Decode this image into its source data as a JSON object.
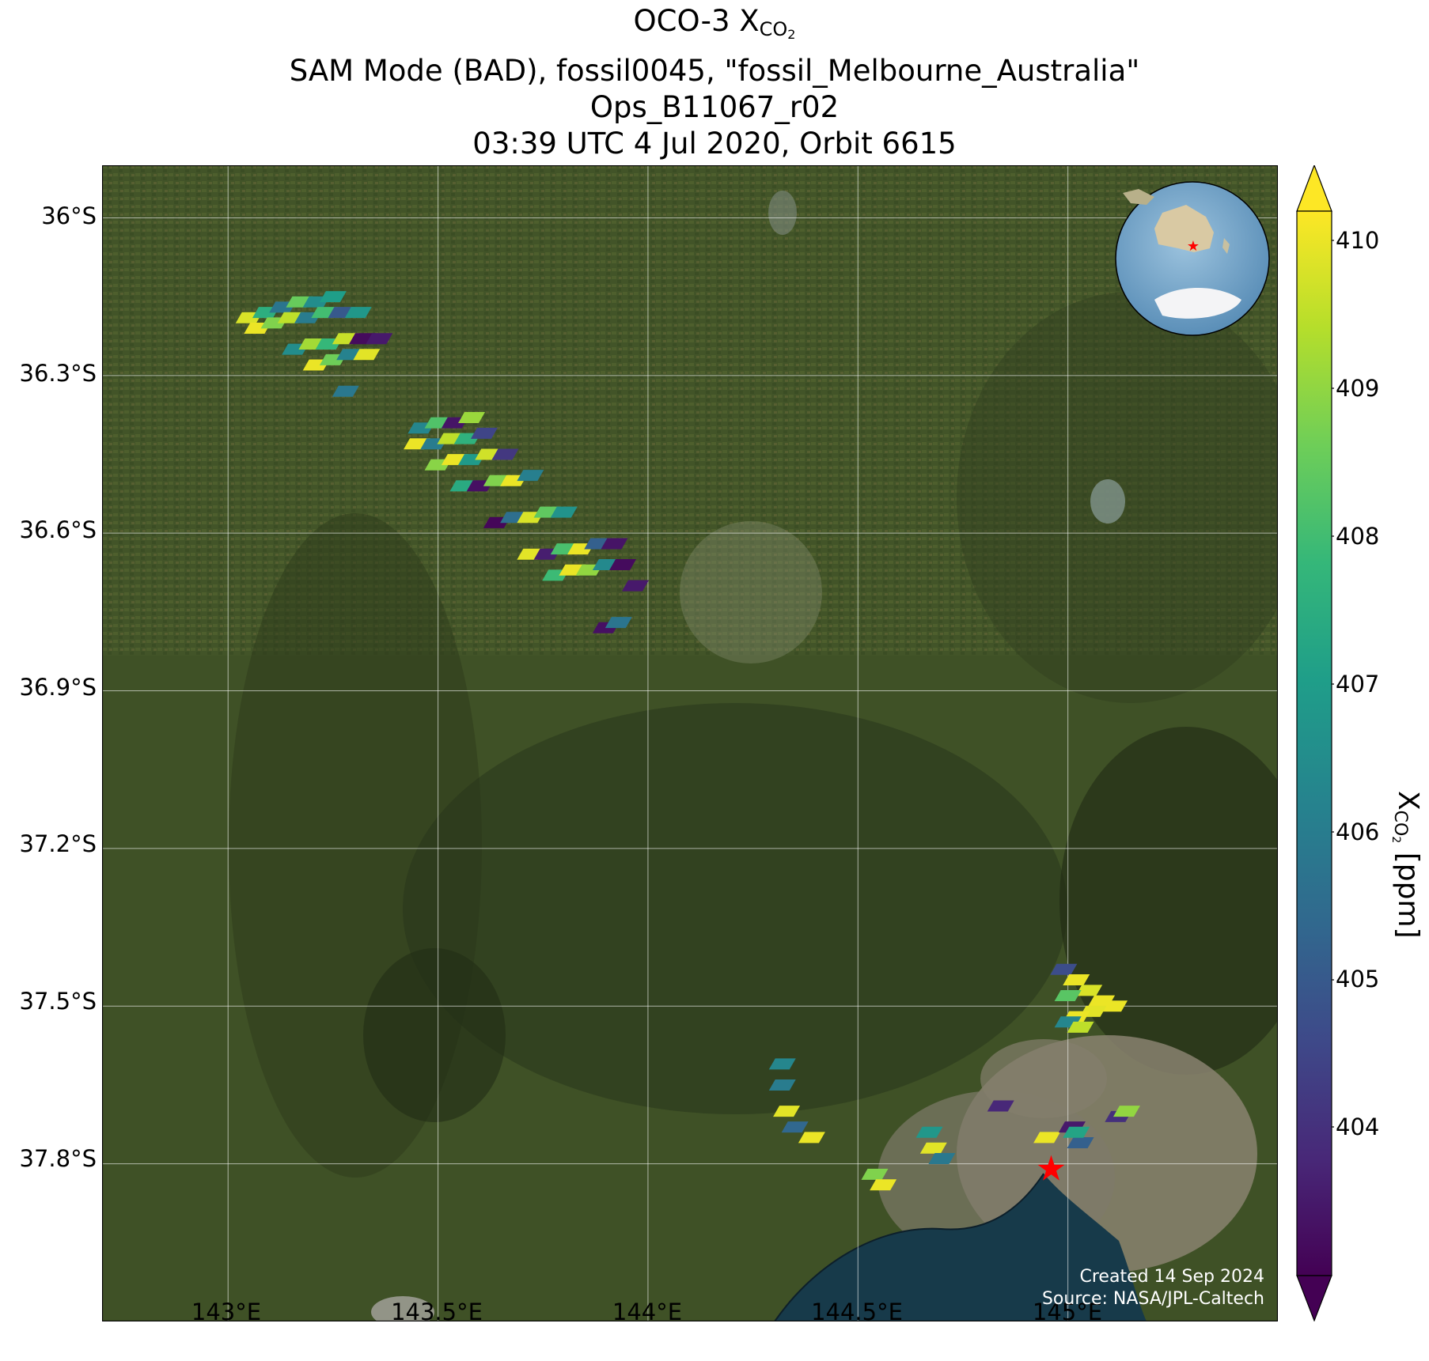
{
  "title": {
    "line1_prefix": "OCO-3 X",
    "line1_sub": "CO",
    "line1_subsub": "2",
    "line2": "SAM Mode (BAD), fossil0045, \"fossil_Melbourne_Australia\"",
    "line3": "Ops_B11067_r02",
    "line4": "03:39 UTC 4 Jul 2020, Orbit 6615"
  },
  "axes": {
    "lat_ticks": [
      "36°S",
      "36.3°S",
      "36.6°S",
      "36.9°S",
      "37.2°S",
      "37.5°S",
      "37.8°S"
    ],
    "lon_ticks": [
      "143°E",
      "143.5°E",
      "144°E",
      "144.5°E",
      "145°E"
    ],
    "lat_range": [
      -38.1,
      -35.9
    ],
    "lon_range": [
      142.7,
      145.5
    ]
  },
  "colorbar": {
    "label_prefix": "X",
    "label_sub": "CO",
    "label_subsub": "2",
    "label_suffix": " [ppm]",
    "ticks": [
      "404",
      "405",
      "406",
      "407",
      "408",
      "409",
      "410"
    ],
    "range": [
      403,
      410.2
    ],
    "colormap": "viridis",
    "extend": "both"
  },
  "credits": {
    "created": "Created 14 Sep 2024",
    "source": "Source: NASA/JPL-Caltech"
  },
  "target": {
    "marker": "red-star",
    "color": "#ff0000",
    "lat": -37.81,
    "lon": 144.96
  },
  "colors": {
    "land_base": "#3f5126",
    "water": "#173a4a",
    "urban": "#8a8270",
    "gridline": "#ffffff"
  },
  "chart_data": {
    "type": "scatter",
    "title": "OCO-3 XCO2",
    "xlabel": "",
    "ylabel": "",
    "xlim": [
      142.7,
      145.5
    ],
    "ylim": [
      -38.1,
      -35.9
    ],
    "value_label": "XCO2 [ppm]",
    "value_range": [
      403,
      410.2
    ],
    "series": [
      {
        "name": "",
        "points": [
          {
            "lon": 143.05,
            "lat": -36.19,
            "v": 409.8
          },
          {
            "lon": 143.09,
            "lat": -36.18,
            "v": 407.5
          },
          {
            "lon": 143.13,
            "lat": -36.17,
            "v": 405.8
          },
          {
            "lon": 143.17,
            "lat": -36.16,
            "v": 408.5
          },
          {
            "lon": 143.21,
            "lat": -36.16,
            "v": 406.5
          },
          {
            "lon": 143.25,
            "lat": -36.15,
            "v": 407.0
          },
          {
            "lon": 143.07,
            "lat": -36.21,
            "v": 410.0
          },
          {
            "lon": 143.11,
            "lat": -36.2,
            "v": 408.8
          },
          {
            "lon": 143.15,
            "lat": -36.19,
            "v": 409.5
          },
          {
            "lon": 143.19,
            "lat": -36.19,
            "v": 406.0
          },
          {
            "lon": 143.23,
            "lat": -36.18,
            "v": 408.0
          },
          {
            "lon": 143.27,
            "lat": -36.18,
            "v": 405.0
          },
          {
            "lon": 143.31,
            "lat": -36.18,
            "v": 406.8
          },
          {
            "lon": 143.16,
            "lat": -36.25,
            "v": 406.5
          },
          {
            "lon": 143.2,
            "lat": -36.24,
            "v": 409.2
          },
          {
            "lon": 143.24,
            "lat": -36.24,
            "v": 407.8
          },
          {
            "lon": 143.28,
            "lat": -36.23,
            "v": 409.6
          },
          {
            "lon": 143.32,
            "lat": -36.23,
            "v": 403.2
          },
          {
            "lon": 143.36,
            "lat": -36.23,
            "v": 403.5
          },
          {
            "lon": 143.21,
            "lat": -36.28,
            "v": 410.0
          },
          {
            "lon": 143.25,
            "lat": -36.27,
            "v": 408.6
          },
          {
            "lon": 143.29,
            "lat": -36.26,
            "v": 406.2
          },
          {
            "lon": 143.33,
            "lat": -36.26,
            "v": 409.9
          },
          {
            "lon": 143.28,
            "lat": -36.33,
            "v": 405.9
          },
          {
            "lon": 143.46,
            "lat": -36.4,
            "v": 406.3
          },
          {
            "lon": 143.5,
            "lat": -36.39,
            "v": 408.2
          },
          {
            "lon": 143.54,
            "lat": -36.39,
            "v": 403.4
          },
          {
            "lon": 143.58,
            "lat": -36.38,
            "v": 409.1
          },
          {
            "lon": 143.45,
            "lat": -36.43,
            "v": 410.0
          },
          {
            "lon": 143.49,
            "lat": -36.43,
            "v": 406.0
          },
          {
            "lon": 143.53,
            "lat": -36.42,
            "v": 409.5
          },
          {
            "lon": 143.57,
            "lat": -36.42,
            "v": 407.6
          },
          {
            "lon": 143.61,
            "lat": -36.41,
            "v": 404.5
          },
          {
            "lon": 143.5,
            "lat": -36.47,
            "v": 408.9
          },
          {
            "lon": 143.54,
            "lat": -36.46,
            "v": 410.0
          },
          {
            "lon": 143.58,
            "lat": -36.46,
            "v": 406.9
          },
          {
            "lon": 143.62,
            "lat": -36.45,
            "v": 409.7
          },
          {
            "lon": 143.66,
            "lat": -36.45,
            "v": 404.2
          },
          {
            "lon": 143.56,
            "lat": -36.51,
            "v": 407.4
          },
          {
            "lon": 143.6,
            "lat": -36.51,
            "v": 403.3
          },
          {
            "lon": 143.64,
            "lat": -36.5,
            "v": 408.8
          },
          {
            "lon": 143.68,
            "lat": -36.5,
            "v": 410.0
          },
          {
            "lon": 143.72,
            "lat": -36.49,
            "v": 406.1
          },
          {
            "lon": 143.64,
            "lat": -36.58,
            "v": 403.1
          },
          {
            "lon": 143.68,
            "lat": -36.57,
            "v": 405.6
          },
          {
            "lon": 143.72,
            "lat": -36.57,
            "v": 409.8
          },
          {
            "lon": 143.76,
            "lat": -36.56,
            "v": 408.4
          },
          {
            "lon": 143.8,
            "lat": -36.56,
            "v": 406.7
          },
          {
            "lon": 143.72,
            "lat": -36.64,
            "v": 409.9
          },
          {
            "lon": 143.76,
            "lat": -36.64,
            "v": 403.6
          },
          {
            "lon": 143.8,
            "lat": -36.63,
            "v": 408.1
          },
          {
            "lon": 143.84,
            "lat": -36.63,
            "v": 410.0
          },
          {
            "lon": 143.88,
            "lat": -36.62,
            "v": 405.2
          },
          {
            "lon": 143.92,
            "lat": -36.62,
            "v": 403.4
          },
          {
            "lon": 143.78,
            "lat": -36.68,
            "v": 407.9
          },
          {
            "lon": 143.82,
            "lat": -36.67,
            "v": 410.0
          },
          {
            "lon": 143.86,
            "lat": -36.67,
            "v": 409.0
          },
          {
            "lon": 143.9,
            "lat": -36.66,
            "v": 406.4
          },
          {
            "lon": 143.94,
            "lat": -36.66,
            "v": 403.2
          },
          {
            "lon": 143.97,
            "lat": -36.7,
            "v": 403.5
          },
          {
            "lon": 143.9,
            "lat": -36.78,
            "v": 403.3
          },
          {
            "lon": 143.93,
            "lat": -36.77,
            "v": 405.8
          },
          {
            "lon": 144.32,
            "lat": -37.61,
            "v": 406.3
          },
          {
            "lon": 144.32,
            "lat": -37.65,
            "v": 406.0
          },
          {
            "lon": 144.33,
            "lat": -37.7,
            "v": 409.9
          },
          {
            "lon": 144.35,
            "lat": -37.73,
            "v": 405.4
          },
          {
            "lon": 144.39,
            "lat": -37.75,
            "v": 410.0
          },
          {
            "lon": 144.54,
            "lat": -37.82,
            "v": 408.8
          },
          {
            "lon": 144.56,
            "lat": -37.84,
            "v": 410.0
          },
          {
            "lon": 144.67,
            "lat": -37.74,
            "v": 406.8
          },
          {
            "lon": 144.68,
            "lat": -37.77,
            "v": 409.9
          },
          {
            "lon": 144.7,
            "lat": -37.79,
            "v": 405.9
          },
          {
            "lon": 144.84,
            "lat": -37.69,
            "v": 403.8
          },
          {
            "lon": 144.95,
            "lat": -37.75,
            "v": 410.0
          },
          {
            "lon": 145.01,
            "lat": -37.73,
            "v": 403.5
          },
          {
            "lon": 145.03,
            "lat": -37.76,
            "v": 405.2
          },
          {
            "lon": 145.02,
            "lat": -37.74,
            "v": 407.2
          },
          {
            "lon": 145.12,
            "lat": -37.71,
            "v": 404.0
          },
          {
            "lon": 145.14,
            "lat": -37.7,
            "v": 409.0
          },
          {
            "lon": 144.99,
            "lat": -37.43,
            "v": 404.7
          },
          {
            "lon": 145.02,
            "lat": -37.45,
            "v": 410.0
          },
          {
            "lon": 145.05,
            "lat": -37.47,
            "v": 409.8
          },
          {
            "lon": 145.0,
            "lat": -37.48,
            "v": 408.3
          },
          {
            "lon": 145.08,
            "lat": -37.49,
            "v": 410.0
          },
          {
            "lon": 145.11,
            "lat": -37.5,
            "v": 410.0
          },
          {
            "lon": 145.06,
            "lat": -37.51,
            "v": 409.9
          },
          {
            "lon": 145.02,
            "lat": -37.52,
            "v": 410.0
          },
          {
            "lon": 145.0,
            "lat": -37.53,
            "v": 406.3
          },
          {
            "lon": 145.03,
            "lat": -37.54,
            "v": 409.5
          }
        ]
      }
    ]
  }
}
